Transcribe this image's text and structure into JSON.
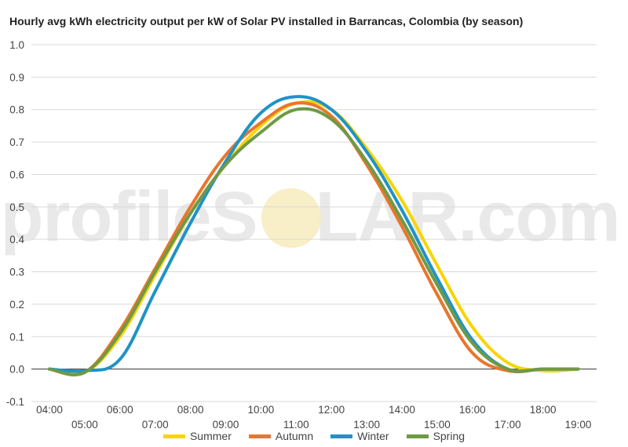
{
  "title": "Hourly avg kWh electricity output per kW of Solar PV installed in Barrancas, Colombia (by season)",
  "watermark": {
    "text_left": "profileS",
    "text_right": "LAR.com",
    "sun_color": "#f6e8b4"
  },
  "chart_data": {
    "type": "line",
    "title": "Hourly avg kWh electricity output per kW of Solar PV installed in Barrancas, Colombia (by season)",
    "xlabel": "",
    "ylabel": "",
    "x": [
      "04:00",
      "05:00",
      "06:00",
      "07:00",
      "08:00",
      "09:00",
      "10:00",
      "11:00",
      "12:00",
      "13:00",
      "14:00",
      "15:00",
      "16:00",
      "17:00",
      "18:00",
      "19:00"
    ],
    "ylim": [
      -0.1,
      1.0
    ],
    "yticks": [
      "-0.1",
      "0.0",
      "0.1",
      "0.2",
      "0.3",
      "0.4",
      "0.5",
      "0.6",
      "0.7",
      "0.8",
      "0.9",
      "1.0"
    ],
    "grid": true,
    "legend_position": "bottom",
    "series": [
      {
        "name": "Summer",
        "color": "#f9d406",
        "values": [
          0.0,
          -0.01,
          0.1,
          0.29,
          0.48,
          0.63,
          0.75,
          0.82,
          0.8,
          0.68,
          0.52,
          0.32,
          0.13,
          0.02,
          -0.005,
          0.0
        ]
      },
      {
        "name": "Autumn",
        "color": "#e8762c",
        "values": [
          0.0,
          -0.01,
          0.12,
          0.31,
          0.5,
          0.66,
          0.76,
          0.82,
          0.78,
          0.63,
          0.44,
          0.23,
          0.05,
          -0.005,
          0.0,
          0.0
        ]
      },
      {
        "name": "Winter",
        "color": "#1f93c6",
        "values": [
          0.0,
          -0.005,
          0.03,
          0.24,
          0.45,
          0.64,
          0.79,
          0.84,
          0.8,
          0.67,
          0.49,
          0.28,
          0.09,
          0.0,
          0.0,
          0.0
        ]
      },
      {
        "name": "Spring",
        "color": "#6e9a45",
        "values": [
          0.0,
          -0.01,
          0.11,
          0.3,
          0.48,
          0.63,
          0.73,
          0.8,
          0.77,
          0.64,
          0.46,
          0.26,
          0.08,
          0.0,
          0.0,
          0.0
        ]
      }
    ]
  }
}
